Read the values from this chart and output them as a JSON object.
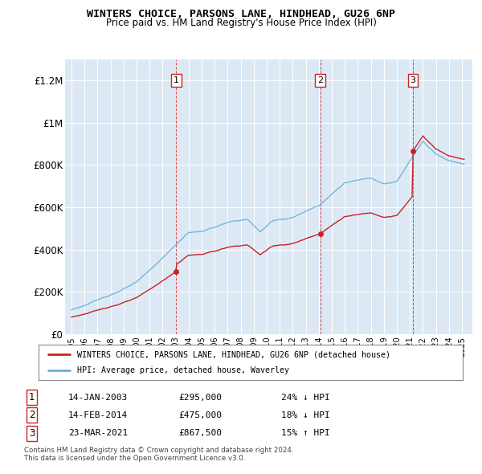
{
  "title1": "WINTERS CHOICE, PARSONS LANE, HINDHEAD, GU26 6NP",
  "title2": "Price paid vs. HM Land Registry's House Price Index (HPI)",
  "background_color": "#dce9f5",
  "hpi_color": "#6ab0d8",
  "price_color": "#cc2222",
  "vline_color": "#cc2222",
  "transactions": [
    {
      "num": 1,
      "date_str": "14-JAN-2003",
      "year": 2003.04,
      "price": 295000,
      "pct": "24%",
      "dir": "↓"
    },
    {
      "num": 2,
      "date_str": "14-FEB-2014",
      "year": 2014.12,
      "price": 475000,
      "pct": "18%",
      "dir": "↓"
    },
    {
      "num": 3,
      "date_str": "23-MAR-2021",
      "year": 2021.22,
      "price": 867500,
      "pct": "15%",
      "dir": "↑"
    }
  ],
  "legend_label1": "WINTERS CHOICE, PARSONS LANE, HINDHEAD, GU26 6NP (detached house)",
  "legend_label2": "HPI: Average price, detached house, Waverley",
  "footnote1": "Contains HM Land Registry data © Crown copyright and database right 2024.",
  "footnote2": "This data is licensed under the Open Government Licence v3.0.",
  "ylim": [
    0,
    1300000
  ],
  "yticks": [
    0,
    200000,
    400000,
    600000,
    800000,
    1000000,
    1200000
  ],
  "ytick_labels": [
    "£0",
    "£200K",
    "£400K",
    "£600K",
    "£800K",
    "£1M",
    "£1.2M"
  ],
  "xmin": 1994.5,
  "xmax": 2025.8
}
